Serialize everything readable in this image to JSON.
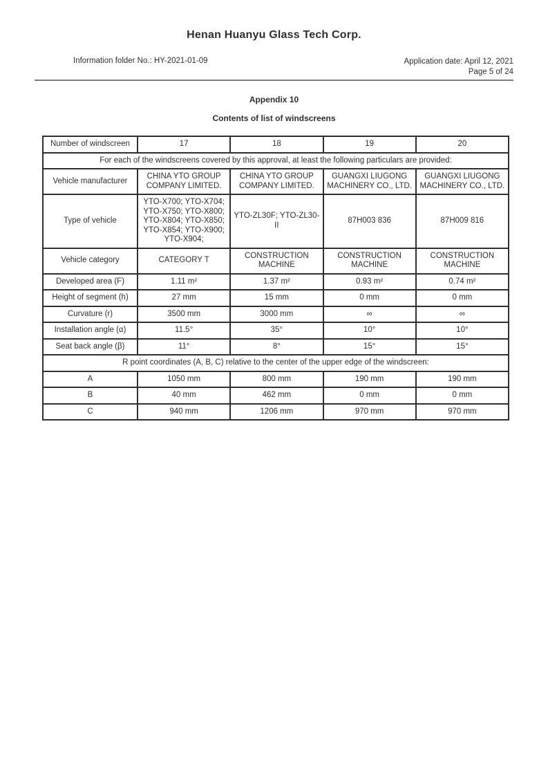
{
  "header": {
    "company": "Henan Huanyu Glass Tech Corp.",
    "info_folder": "Information folder No.: HY-2021-01-09",
    "application_date": "Application date: April 12, 2021",
    "page_number": "Page 5 of 24",
    "appendix": "Appendix 10",
    "subtitle": "Contents of list of windscreens"
  },
  "table": {
    "header_label": "Number of windscreen",
    "columns": [
      "17",
      "18",
      "19",
      "20"
    ],
    "note": "For each of the windscreens covered by this approval, at least the following particulars are provided:",
    "rows": [
      {
        "label": "Vehicle manufacturer",
        "values": [
          "CHINA YTO GROUP COMPANY LIMITED.",
          "CHINA YTO GROUP COMPANY LIMITED.",
          "GUANGXI LIUGONG MACHINERY CO., LTD.",
          "GUANGXI LIUGONG MACHINERY CO., LTD."
        ]
      },
      {
        "label": "Type of vehicle",
        "values": [
          "YTO-X700; YTO-X704; YTO-X750; YTO-X800; YTO-X804; YTO-X850; YTO-X854; YTO-X900; YTO-X904;",
          "YTO-ZL30F; YTO-ZL30-II",
          "87H003 836",
          "87H009 816"
        ]
      },
      {
        "label": "Vehicle category",
        "values": [
          "CATEGORY T",
          "CONSTRUCTION MACHINE",
          "CONSTRUCTION MACHINE",
          "CONSTRUCTION MACHINE"
        ]
      },
      {
        "label": "Developed area (F)",
        "values": [
          "1.11 m²",
          "1.37 m²",
          "0.93 m²",
          "0.74 m²"
        ]
      },
      {
        "label": "Height of segment (h)",
        "values": [
          "27 mm",
          "15 mm",
          "0 mm",
          "0 mm"
        ]
      },
      {
        "label": "Curvature (r)",
        "values": [
          "3500 mm",
          "3000 mm",
          "∞",
          "∞"
        ]
      },
      {
        "label": "Installation angle (α)",
        "values": [
          "11.5°",
          "35°",
          "10°",
          "10°"
        ]
      },
      {
        "label": "Seat back angle (β)",
        "values": [
          "11°",
          "8°",
          "15°",
          "15°"
        ]
      }
    ],
    "r_point_note": "R point coordinates (A, B, C) relative to the center of the upper edge of the windscreen:",
    "coordinates": [
      {
        "label": "A",
        "values": [
          "1050 mm",
          "800 mm",
          "190 mm",
          "190 mm"
        ]
      },
      {
        "label": "B",
        "values": [
          "40 mm",
          "462 mm",
          "0 mm",
          "0 mm"
        ]
      },
      {
        "label": "C",
        "values": [
          "940 mm",
          "1206 mm",
          "970 mm",
          "970 mm"
        ]
      }
    ]
  }
}
